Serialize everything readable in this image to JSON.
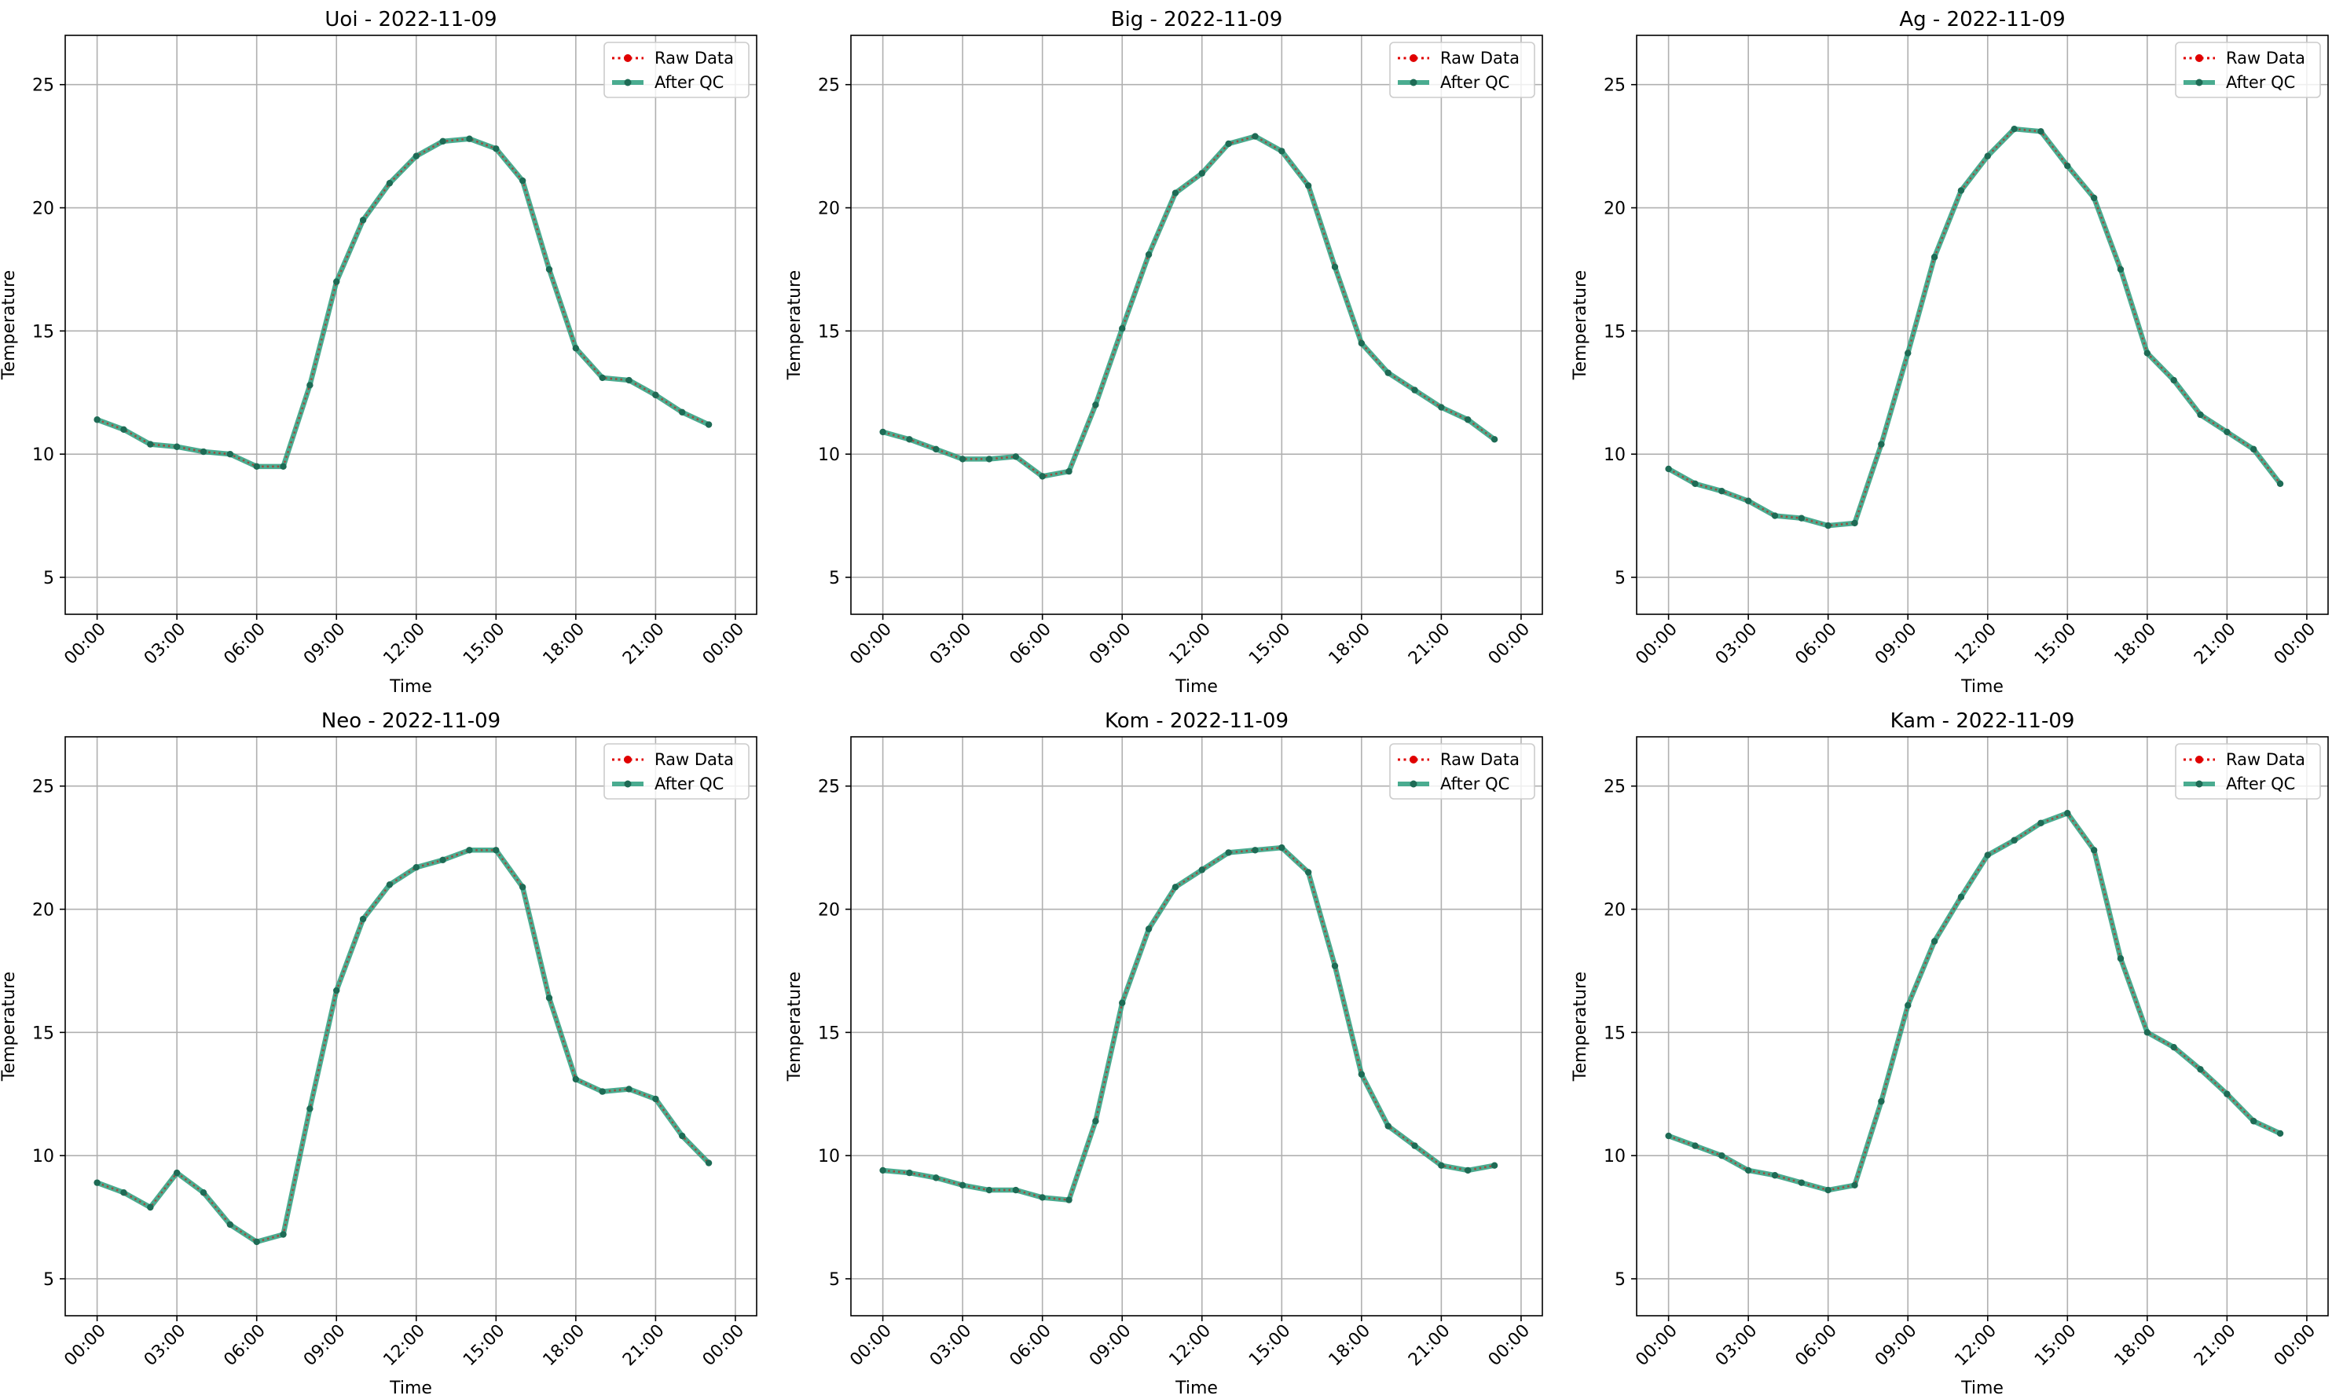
{
  "figure": {
    "date": "2022-11-09"
  },
  "colors": {
    "raw": "#e00000",
    "qc_line": "#2a9d7c",
    "qc_marker": "#1e6b55"
  },
  "legend_labels": [
    "Raw Data",
    "After QC"
  ],
  "legend_placement": "top-right",
  "grid": true,
  "x_tick_labels": [
    "00:00",
    "03:00",
    "06:00",
    "09:00",
    "12:00",
    "15:00",
    "18:00",
    "21:00",
    "00:00"
  ],
  "chart_data": [
    {
      "type": "line",
      "title": "Uoi - 2022-11-09",
      "xlabel": "Time",
      "ylabel": "Temperature",
      "ylim": [
        3.5,
        27
      ],
      "yticks": [
        5,
        10,
        15,
        20,
        25
      ],
      "x_hours": [
        0,
        1,
        2,
        3,
        4,
        5,
        6,
        7,
        8,
        9,
        10,
        11,
        12,
        13,
        14,
        15,
        16,
        17,
        18,
        19,
        20,
        21,
        22,
        23
      ],
      "series": [
        {
          "name": "Raw Data",
          "values": [
            11.4,
            11.0,
            10.4,
            10.3,
            10.1,
            10.0,
            9.5,
            9.5,
            12.8,
            17.0,
            19.5,
            21.0,
            22.1,
            22.7,
            22.8,
            22.4,
            21.1,
            17.5,
            14.3,
            13.1,
            13.0,
            12.4,
            11.7,
            11.2
          ]
        },
        {
          "name": "After QC",
          "values": [
            11.4,
            11.0,
            10.4,
            10.3,
            10.1,
            10.0,
            9.5,
            9.5,
            12.8,
            17.0,
            19.5,
            21.0,
            22.1,
            22.7,
            22.8,
            22.4,
            21.1,
            17.5,
            14.3,
            13.1,
            13.0,
            12.4,
            11.7,
            11.2
          ]
        }
      ]
    },
    {
      "type": "line",
      "title": "Big - 2022-11-09",
      "xlabel": "Time",
      "ylabel": "Temperature",
      "ylim": [
        3.5,
        27
      ],
      "yticks": [
        5,
        10,
        15,
        20,
        25
      ],
      "x_hours": [
        0,
        1,
        2,
        3,
        4,
        5,
        6,
        7,
        8,
        9,
        10,
        11,
        12,
        13,
        14,
        15,
        16,
        17,
        18,
        19,
        20,
        21,
        22,
        23
      ],
      "series": [
        {
          "name": "Raw Data",
          "values": [
            10.9,
            10.6,
            10.2,
            9.8,
            9.8,
            9.9,
            9.1,
            9.3,
            12.0,
            15.1,
            18.1,
            20.6,
            21.4,
            22.6,
            22.9,
            22.3,
            20.9,
            17.6,
            14.5,
            13.3,
            12.6,
            11.9,
            11.4,
            10.6
          ]
        },
        {
          "name": "After QC",
          "values": [
            10.9,
            10.6,
            10.2,
            9.8,
            9.8,
            9.9,
            9.1,
            9.3,
            12.0,
            15.1,
            18.1,
            20.6,
            21.4,
            22.6,
            22.9,
            22.3,
            20.9,
            17.6,
            14.5,
            13.3,
            12.6,
            11.9,
            11.4,
            10.6
          ]
        }
      ]
    },
    {
      "type": "line",
      "title": "Ag - 2022-11-09",
      "xlabel": "Time",
      "ylabel": "Temperature",
      "ylim": [
        3.5,
        27
      ],
      "yticks": [
        5,
        10,
        15,
        20,
        25
      ],
      "x_hours": [
        0,
        1,
        2,
        3,
        4,
        5,
        6,
        7,
        8,
        9,
        10,
        11,
        12,
        13,
        14,
        15,
        16,
        17,
        18,
        19,
        20,
        21,
        22,
        23
      ],
      "series": [
        {
          "name": "Raw Data",
          "values": [
            9.4,
            8.8,
            8.5,
            8.1,
            7.5,
            7.4,
            7.1,
            7.2,
            10.4,
            14.1,
            18.0,
            20.7,
            22.1,
            23.2,
            23.1,
            21.7,
            20.4,
            17.5,
            14.1,
            13.0,
            11.6,
            10.9,
            10.2,
            8.8
          ]
        },
        {
          "name": "After QC",
          "values": [
            9.4,
            8.8,
            8.5,
            8.1,
            7.5,
            7.4,
            7.1,
            7.2,
            10.4,
            14.1,
            18.0,
            20.7,
            22.1,
            23.2,
            23.1,
            21.7,
            20.4,
            17.5,
            14.1,
            13.0,
            11.6,
            10.9,
            10.2,
            8.8
          ]
        }
      ]
    },
    {
      "type": "line",
      "title": "Neo - 2022-11-09",
      "xlabel": "Time",
      "ylabel": "Temperature",
      "ylim": [
        3.5,
        27
      ],
      "yticks": [
        5,
        10,
        15,
        20,
        25
      ],
      "x_hours": [
        0,
        1,
        2,
        3,
        4,
        5,
        6,
        7,
        8,
        9,
        10,
        11,
        12,
        13,
        14,
        15,
        16,
        17,
        18,
        19,
        20,
        21,
        22,
        23
      ],
      "series": [
        {
          "name": "Raw Data",
          "values": [
            8.9,
            8.5,
            7.9,
            9.3,
            8.5,
            7.2,
            6.5,
            6.8,
            11.9,
            16.7,
            19.6,
            21.0,
            21.7,
            22.0,
            22.4,
            22.4,
            20.9,
            16.4,
            13.1,
            12.6,
            12.7,
            12.3,
            10.8,
            9.7
          ]
        },
        {
          "name": "After QC",
          "values": [
            8.9,
            8.5,
            7.9,
            9.3,
            8.5,
            7.2,
            6.5,
            6.8,
            11.9,
            16.7,
            19.6,
            21.0,
            21.7,
            22.0,
            22.4,
            22.4,
            20.9,
            16.4,
            13.1,
            12.6,
            12.7,
            12.3,
            10.8,
            9.7
          ]
        }
      ]
    },
    {
      "type": "line",
      "title": "Kom - 2022-11-09",
      "xlabel": "Time",
      "ylabel": "Temperature",
      "ylim": [
        3.5,
        27
      ],
      "yticks": [
        5,
        10,
        15,
        20,
        25
      ],
      "x_hours": [
        0,
        1,
        2,
        3,
        4,
        5,
        6,
        7,
        8,
        9,
        10,
        11,
        12,
        13,
        14,
        15,
        16,
        17,
        18,
        19,
        20,
        21,
        22,
        23
      ],
      "series": [
        {
          "name": "Raw Data",
          "values": [
            9.4,
            9.3,
            9.1,
            8.8,
            8.6,
            8.6,
            8.3,
            8.2,
            11.4,
            16.2,
            19.2,
            20.9,
            21.6,
            22.3,
            22.4,
            22.5,
            21.5,
            17.7,
            13.3,
            11.2,
            10.4,
            9.6,
            9.4,
            9.6
          ]
        },
        {
          "name": "After QC",
          "values": [
            9.4,
            9.3,
            9.1,
            8.8,
            8.6,
            8.6,
            8.3,
            8.2,
            11.4,
            16.2,
            19.2,
            20.9,
            21.6,
            22.3,
            22.4,
            22.5,
            21.5,
            17.7,
            13.3,
            11.2,
            10.4,
            9.6,
            9.4,
            9.6
          ]
        }
      ]
    },
    {
      "type": "line",
      "title": "Kam - 2022-11-09",
      "xlabel": "Time",
      "ylabel": "Temperature",
      "ylim": [
        3.5,
        27
      ],
      "yticks": [
        5,
        10,
        15,
        20,
        25
      ],
      "x_hours": [
        0,
        1,
        2,
        3,
        4,
        5,
        6,
        7,
        8,
        9,
        10,
        11,
        12,
        13,
        14,
        15,
        16,
        17,
        18,
        19,
        20,
        21,
        22,
        23
      ],
      "series": [
        {
          "name": "Raw Data",
          "values": [
            10.8,
            10.4,
            10.0,
            9.4,
            9.2,
            8.9,
            8.6,
            8.8,
            12.2,
            16.1,
            18.7,
            20.5,
            22.2,
            22.8,
            23.5,
            23.9,
            22.4,
            18.0,
            15.0,
            14.4,
            13.5,
            12.5,
            11.4,
            10.9
          ]
        },
        {
          "name": "After QC",
          "values": [
            10.8,
            10.4,
            10.0,
            9.4,
            9.2,
            8.9,
            8.6,
            8.8,
            12.2,
            16.1,
            18.7,
            20.5,
            22.2,
            22.8,
            23.5,
            23.9,
            22.4,
            18.0,
            15.0,
            14.4,
            13.5,
            12.5,
            11.4,
            10.9
          ]
        }
      ]
    }
  ]
}
